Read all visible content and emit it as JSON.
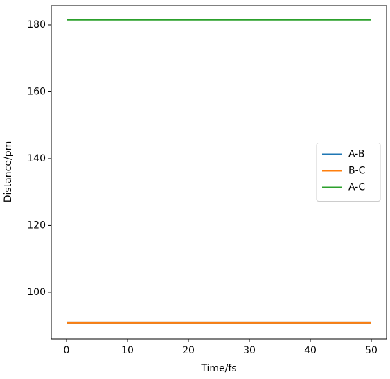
{
  "chart_data": {
    "type": "line",
    "x_label": "Time/fs",
    "y_label": "Distance/pm",
    "x": [
      0,
      50
    ],
    "series": [
      {
        "name": "A-B",
        "color": "#1f77b4",
        "values": [
          90.9,
          90.9
        ]
      },
      {
        "name": "B-C",
        "color": "#ff7f0e",
        "values": [
          90.9,
          90.9
        ]
      },
      {
        "name": "A-C",
        "color": "#2ca02c",
        "values": [
          181.5,
          181.5
        ]
      }
    ],
    "xlim": [
      -2.5,
      52.5
    ],
    "xticks": [
      0,
      10,
      20,
      30,
      40,
      50
    ],
    "ylim": [
      86.1,
      185.8
    ],
    "yticks": [
      100,
      120,
      140,
      160,
      180
    ],
    "grid": false,
    "legend": "center right"
  }
}
